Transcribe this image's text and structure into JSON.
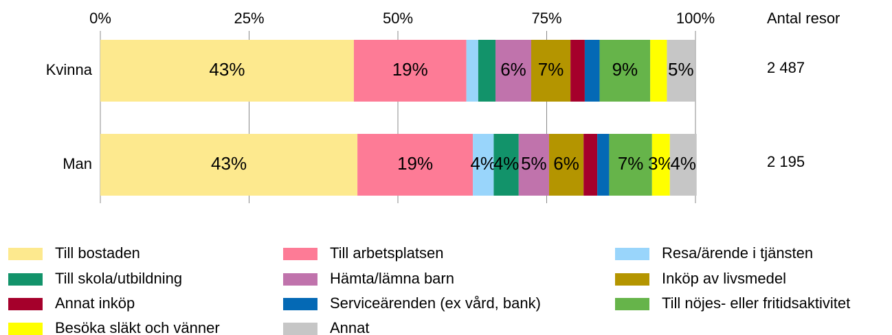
{
  "chart_data": {
    "type": "stacked-barh",
    "categories": [
      "Kvinna",
      "Man"
    ],
    "xlim": [
      0,
      100
    ],
    "xticks": [
      {
        "value": 0,
        "label": "0%"
      },
      {
        "value": 25,
        "label": "25%"
      },
      {
        "value": 50,
        "label": "50%"
      },
      {
        "value": 75,
        "label": "75%"
      },
      {
        "value": 100,
        "label": "100%"
      }
    ],
    "grid": true,
    "series": [
      {
        "name": "Till bostaden",
        "color": "#fde98e",
        "values": [
          42.6,
          43.2
        ],
        "value_labels": [
          "43%",
          "43%"
        ]
      },
      {
        "name": "Till arbetsplatsen",
        "color": "#fd7b96",
        "values": [
          18.9,
          19.4
        ],
        "value_labels": [
          "19%",
          "19%"
        ]
      },
      {
        "name": "Resa/ärende i tjänsten",
        "color": "#99d5fb",
        "values": [
          2.0,
          3.5
        ],
        "value_labels": [
          null,
          "4%"
        ]
      },
      {
        "name": "Till skola/utbildning",
        "color": "#12936a",
        "values": [
          2.9,
          4.2
        ],
        "value_labels": [
          null,
          "4%"
        ]
      },
      {
        "name": "Hämta/lämna barn",
        "color": "#c073ac",
        "values": [
          6.0,
          5.1
        ],
        "value_labels": [
          "6%",
          "5%"
        ]
      },
      {
        "name": "Inköp av livsmedel",
        "color": "#b49500",
        "values": [
          6.6,
          5.8
        ],
        "value_labels": [
          "7%",
          "6%"
        ]
      },
      {
        "name": "Annat inköp",
        "color": "#a5002b",
        "values": [
          2.4,
          2.3
        ],
        "value_labels": [
          null,
          null
        ]
      },
      {
        "name": "Serviceärenden (ex vård, bank)",
        "color": "#0469b5",
        "values": [
          2.5,
          2.0
        ],
        "value_labels": [
          null,
          null
        ]
      },
      {
        "name": "Till nöjes- eller fritidsaktivitet",
        "color": "#66b44a",
        "values": [
          8.5,
          7.2
        ],
        "value_labels": [
          "9%",
          "7%"
        ]
      },
      {
        "name": "Besöka släkt och vänner",
        "color": "#ffff00",
        "values": [
          2.8,
          3.0
        ],
        "value_labels": [
          null,
          "3%"
        ]
      },
      {
        "name": "Annat",
        "color": "#c6c6c6",
        "values": [
          4.7,
          4.5
        ],
        "value_labels": [
          "5%",
          "4%"
        ]
      }
    ],
    "totals": {
      "title": "Antal resor",
      "values": [
        2487,
        2195
      ],
      "value_labels": [
        "2 487",
        "2 195"
      ]
    }
  }
}
